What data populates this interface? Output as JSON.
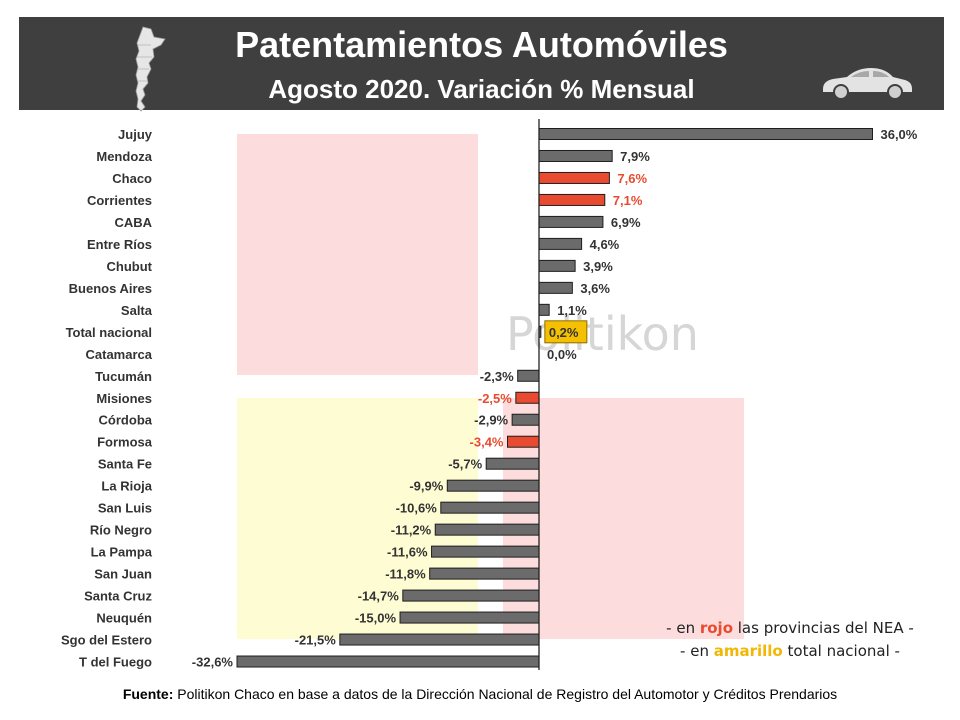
{
  "header": {
    "title": "Patentamientos Automóviles",
    "subtitle": "Agosto 2020.  Variación % Mensual"
  },
  "watermark": "Politikon",
  "note": {
    "line1_pre": "- en ",
    "line1_highlight": "rojo",
    "line1_post": " las provincias del NEA -",
    "line2_pre": "- en ",
    "line2_highlight": "amarillo",
    "line2_post": " total nacional -"
  },
  "source": {
    "label": "Fuente:",
    "text": " Politikon Chaco en base a datos de la Dirección Nacional de Registro del Automotor y Créditos Prendarios"
  },
  "colors": {
    "header_bg": "#3f3f3f",
    "bar_default": "#6b6b6b",
    "bar_nea": "#e84b2f",
    "label_nea": "#e84b2f",
    "total_highlight": "#f5c000",
    "flag_red": "#fcdcdc",
    "flag_yellow": "#fefcd3"
  },
  "icons": [
    "argentina-map-icon",
    "car-icon"
  ],
  "chart_data": {
    "type": "bar",
    "orientation": "horizontal",
    "categories": [
      "Jujuy",
      "Mendoza",
      "Chaco",
      "Corrientes",
      "CABA",
      "Entre Ríos",
      "Chubut",
      "Buenos Aires",
      "Salta",
      "Total nacional",
      "Catamarca",
      "Tucumán",
      "Misiones",
      "Córdoba",
      "Formosa",
      "Santa Fe",
      "La Rioja",
      "San Luis",
      "Río Negro",
      "La Pampa",
      "San Juan",
      "Santa Cruz",
      "Neuquén",
      "Sgo del Estero",
      "T del Fuego"
    ],
    "values": [
      36.0,
      7.9,
      7.6,
      7.1,
      6.9,
      4.6,
      3.9,
      3.6,
      1.1,
      0.2,
      0.0,
      -2.3,
      -2.5,
      -2.9,
      -3.4,
      -5.7,
      -9.9,
      -10.6,
      -11.2,
      -11.6,
      -11.8,
      -14.7,
      -15.0,
      -21.5,
      -32.6
    ],
    "value_labels": [
      "36,0%",
      "7,9%",
      "7,6%",
      "7,1%",
      "6,9%",
      "4,6%",
      "3,9%",
      "3,6%",
      "1,1%",
      "0,2%",
      "0,0%",
      "-2,3%",
      "-2,5%",
      "-2,9%",
      "-3,4%",
      "-5,7%",
      "-9,9%",
      "-10,6%",
      "-11,2%",
      "-11,6%",
      "-11,8%",
      "-14,7%",
      "-15,0%",
      "-21,5%",
      "-32,6%"
    ],
    "highlight_red": [
      "Chaco",
      "Corrientes",
      "Misiones",
      "Formosa"
    ],
    "highlight_yellow": [
      "Total nacional"
    ],
    "xlim": [
      -32.6,
      36.0
    ]
  }
}
